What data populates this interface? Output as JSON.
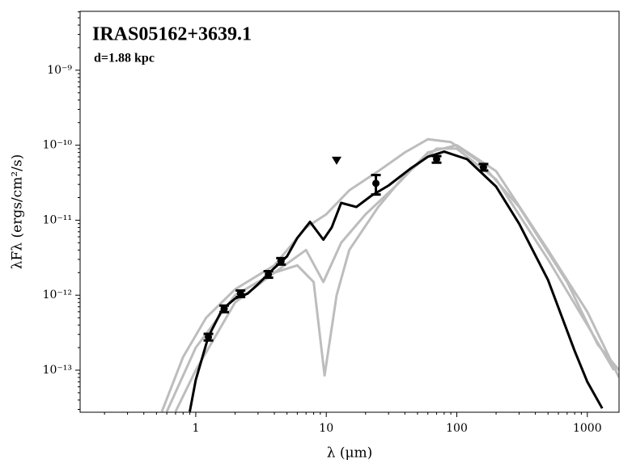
{
  "chart_data": {
    "type": "sed",
    "title": "IRAS05162+3639.1",
    "annotation": "d=1.88 kpc",
    "x_label": "λ (μm)",
    "y_label": "λFλ (ergs/cm²/s)",
    "log_x": true,
    "log_y": true,
    "xlim": [
      0.13,
      1750
    ],
    "ylim": [
      2.75e-14,
      6.1e-09
    ],
    "xticks": [
      1,
      10,
      100,
      1000
    ],
    "yticks": [
      {
        "value": 1e-13,
        "label": "10⁻¹³"
      },
      {
        "value": 1e-12,
        "label": "10⁻¹²"
      },
      {
        "value": 1e-11,
        "label": "10⁻¹¹"
      },
      {
        "value": 1e-10,
        "label": "10⁻¹⁰"
      },
      {
        "value": 1e-09,
        "label": "10⁻⁹"
      }
    ],
    "models": [
      {
        "color": "#bdbdbd",
        "x": [
          0.55,
          0.8,
          1.2,
          2,
          4,
          7,
          10,
          15,
          25,
          40,
          60,
          90,
          150,
          300,
          700,
          1200,
          1750
        ],
        "values": [
          2.8e-14,
          1.5e-13,
          5e-13,
          1.2e-12,
          2.5e-12,
          8e-12,
          1.2e-11,
          2.5e-11,
          4.5e-11,
          8e-11,
          1.2e-10,
          1.1e-10,
          6e-11,
          1.5e-11,
          1.5e-12,
          2.2e-13,
          1e-13
        ]
      },
      {
        "color": "#bdbdbd",
        "x": [
          0.6,
          1,
          2,
          4,
          6,
          8,
          9.7,
          12,
          15,
          25,
          40,
          70,
          100,
          200,
          500,
          1000,
          1600
        ],
        "values": [
          2.8e-14,
          2e-13,
          1e-12,
          2e-12,
          2.5e-12,
          1.5e-12,
          8.5e-14,
          1e-12,
          4e-12,
          1.5e-11,
          4e-11,
          9e-11,
          9e-11,
          3.5e-11,
          3e-12,
          4e-13,
          1e-13
        ]
      },
      {
        "color": "#bdbdbd",
        "x": [
          0.7,
          1,
          2,
          4,
          7,
          9.5,
          13,
          20,
          35,
          60,
          100,
          200,
          500,
          1000,
          1750
        ],
        "values": [
          2.8e-14,
          1e-13,
          8e-13,
          2e-12,
          4e-12,
          1.5e-12,
          5e-12,
          1.2e-11,
          3e-11,
          8e-11,
          1e-10,
          4.5e-11,
          4e-12,
          6e-13,
          8e-14
        ]
      }
    ],
    "best_fit": {
      "color": "#000000",
      "x": [
        0.9,
        1.0,
        1.25,
        1.6,
        2.0,
        2.5,
        3.0,
        4.0,
        5.0,
        6.0,
        7.5,
        9.5,
        11,
        13,
        17,
        22,
        30,
        45,
        60,
        80,
        120,
        200,
        300,
        500,
        800,
        1000,
        1300
      ],
      "values": [
        2.8e-14,
        7.4e-14,
        2.8e-13,
        6.5e-13,
        9e-13,
        1.05e-12,
        1.4e-12,
        2.3e-12,
        3.3e-12,
        5.8e-12,
        9.5e-12,
        5.5e-12,
        8e-12,
        1.7e-11,
        1.5e-11,
        2.1e-11,
        2.9e-11,
        5e-11,
        7e-11,
        8.2e-11,
        6.5e-11,
        2.8e-11,
        9e-12,
        1.6e-12,
        1.8e-13,
        7e-14,
        3.1e-14
      ]
    },
    "observations": {
      "color": "#000000",
      "x": [
        1.25,
        1.65,
        2.2,
        3.6,
        4.5,
        24,
        70,
        160
      ],
      "values": [
        2.77e-13,
        6.6e-13,
        1.05e-12,
        1.9e-12,
        2.84e-12,
        3.1e-11,
        6.5e-11,
        5.1e-11
      ],
      "errors": [
        2.8e-14,
        6.6e-14,
        1.05e-13,
        1.9e-13,
        2.8e-13,
        9e-12,
        6.5e-12,
        5.1e-12
      ]
    },
    "upper_limits": {
      "color": "#000000",
      "x": [
        12
      ],
      "values": [
        6.2e-11
      ]
    }
  }
}
